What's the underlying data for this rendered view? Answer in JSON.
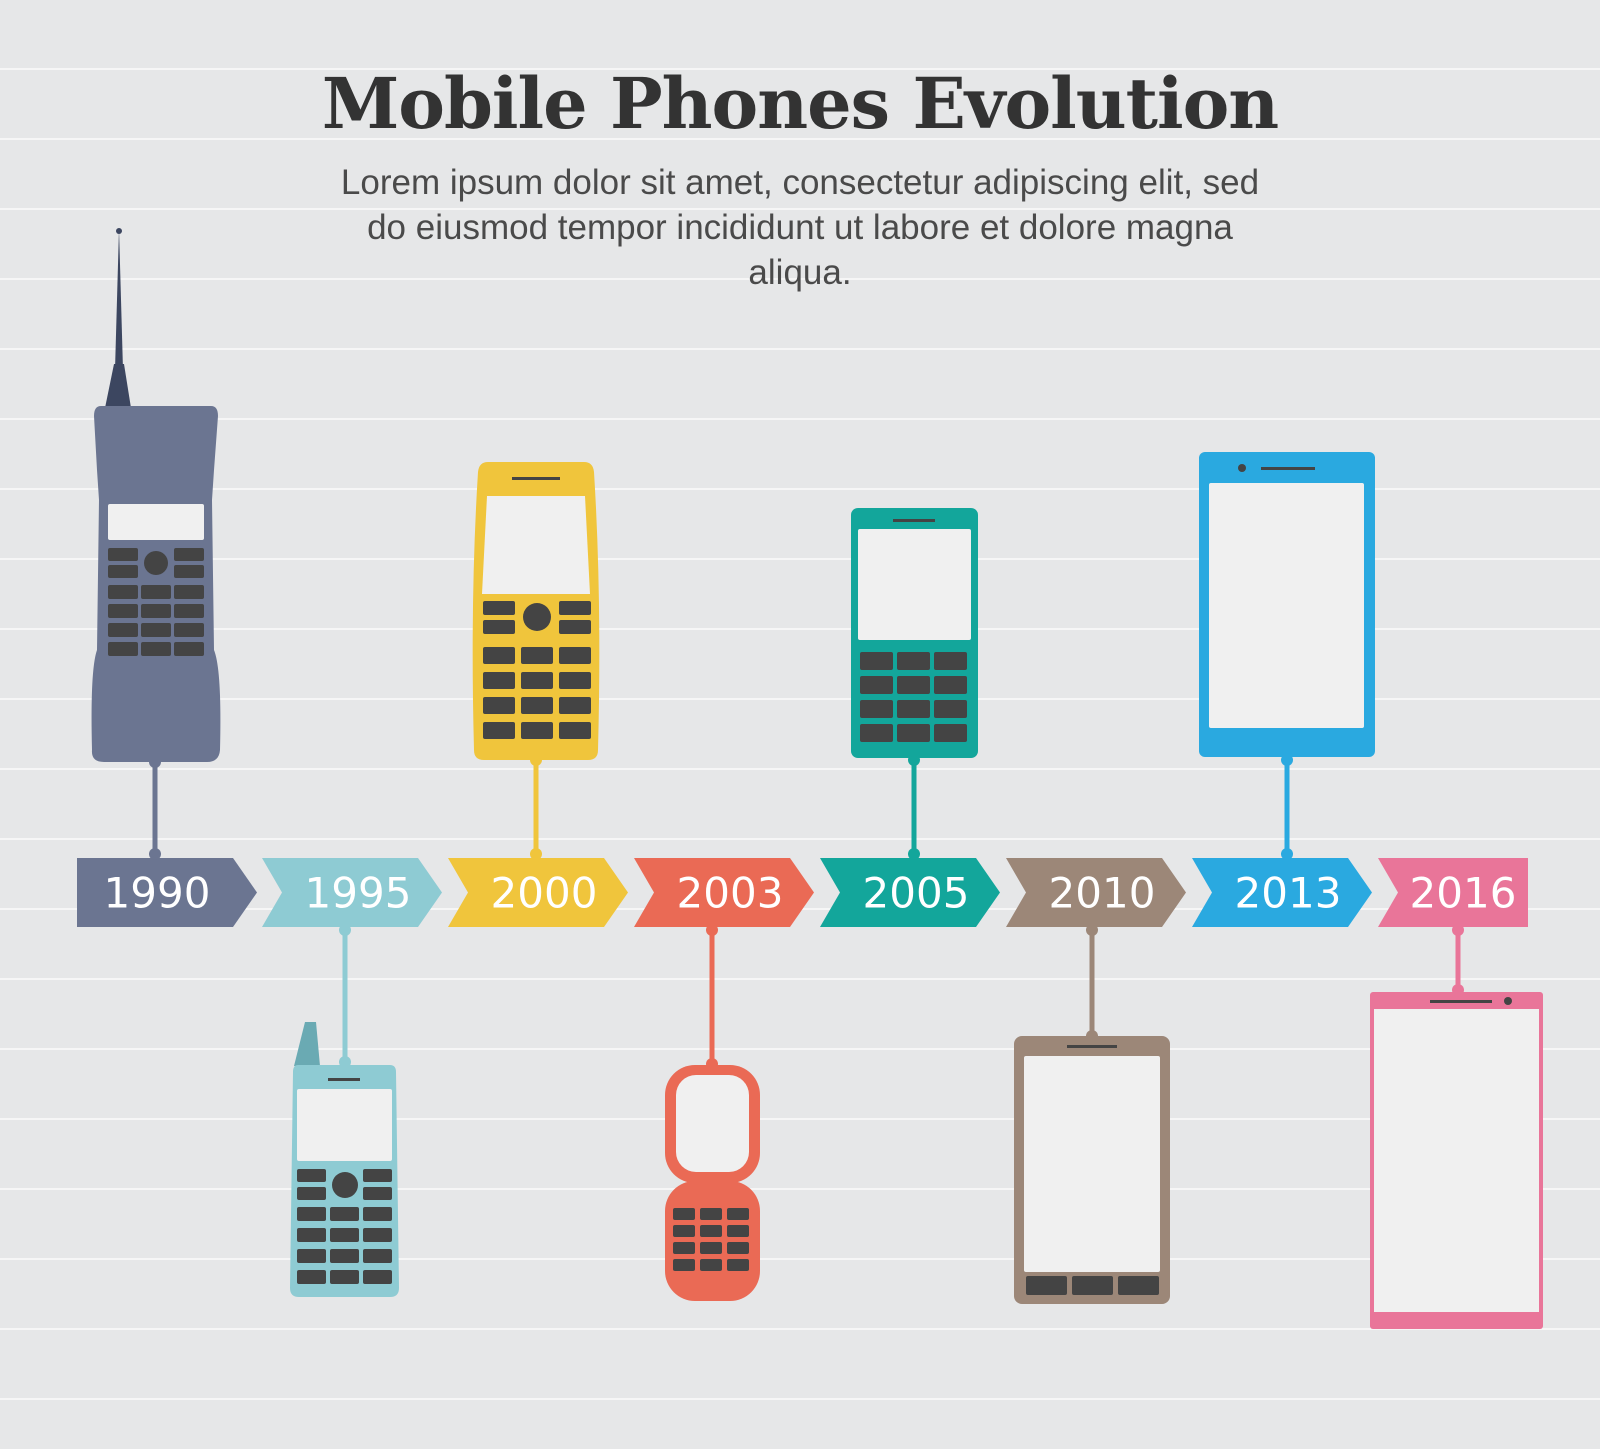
{
  "title": "Mobile Phones Evolution",
  "subtitle": "Lorem ipsum dolor sit amet, consectetur adipiscing elit, sed do eiusmod tempor incididunt ut labore et dolore magna aliqua.",
  "timeline": [
    {
      "year": "1990",
      "color": "#6b7591",
      "icon": "brick-phone-icon"
    },
    {
      "year": "1995",
      "color": "#8ecbd3",
      "icon": "keypad-phone-icon"
    },
    {
      "year": "2000",
      "color": "#f0c53c",
      "icon": "candybar-phone-icon"
    },
    {
      "year": "2003",
      "color": "#ea6a55",
      "icon": "flip-phone-icon"
    },
    {
      "year": "2005",
      "color": "#13a69b",
      "icon": "feature-phone-icon"
    },
    {
      "year": "2010",
      "color": "#9c8778",
      "icon": "touchscreen-phone-icon"
    },
    {
      "year": "2013",
      "color": "#2aa9e0",
      "icon": "smartphone-icon"
    },
    {
      "year": "2016",
      "color": "#e97599",
      "icon": "phablet-icon"
    }
  ],
  "colors": {
    "background": "#e6e7e8",
    "stripe": "#f6f6f6",
    "screen": "#f0f0f0",
    "keys": "#444444",
    "text": "#333333"
  }
}
